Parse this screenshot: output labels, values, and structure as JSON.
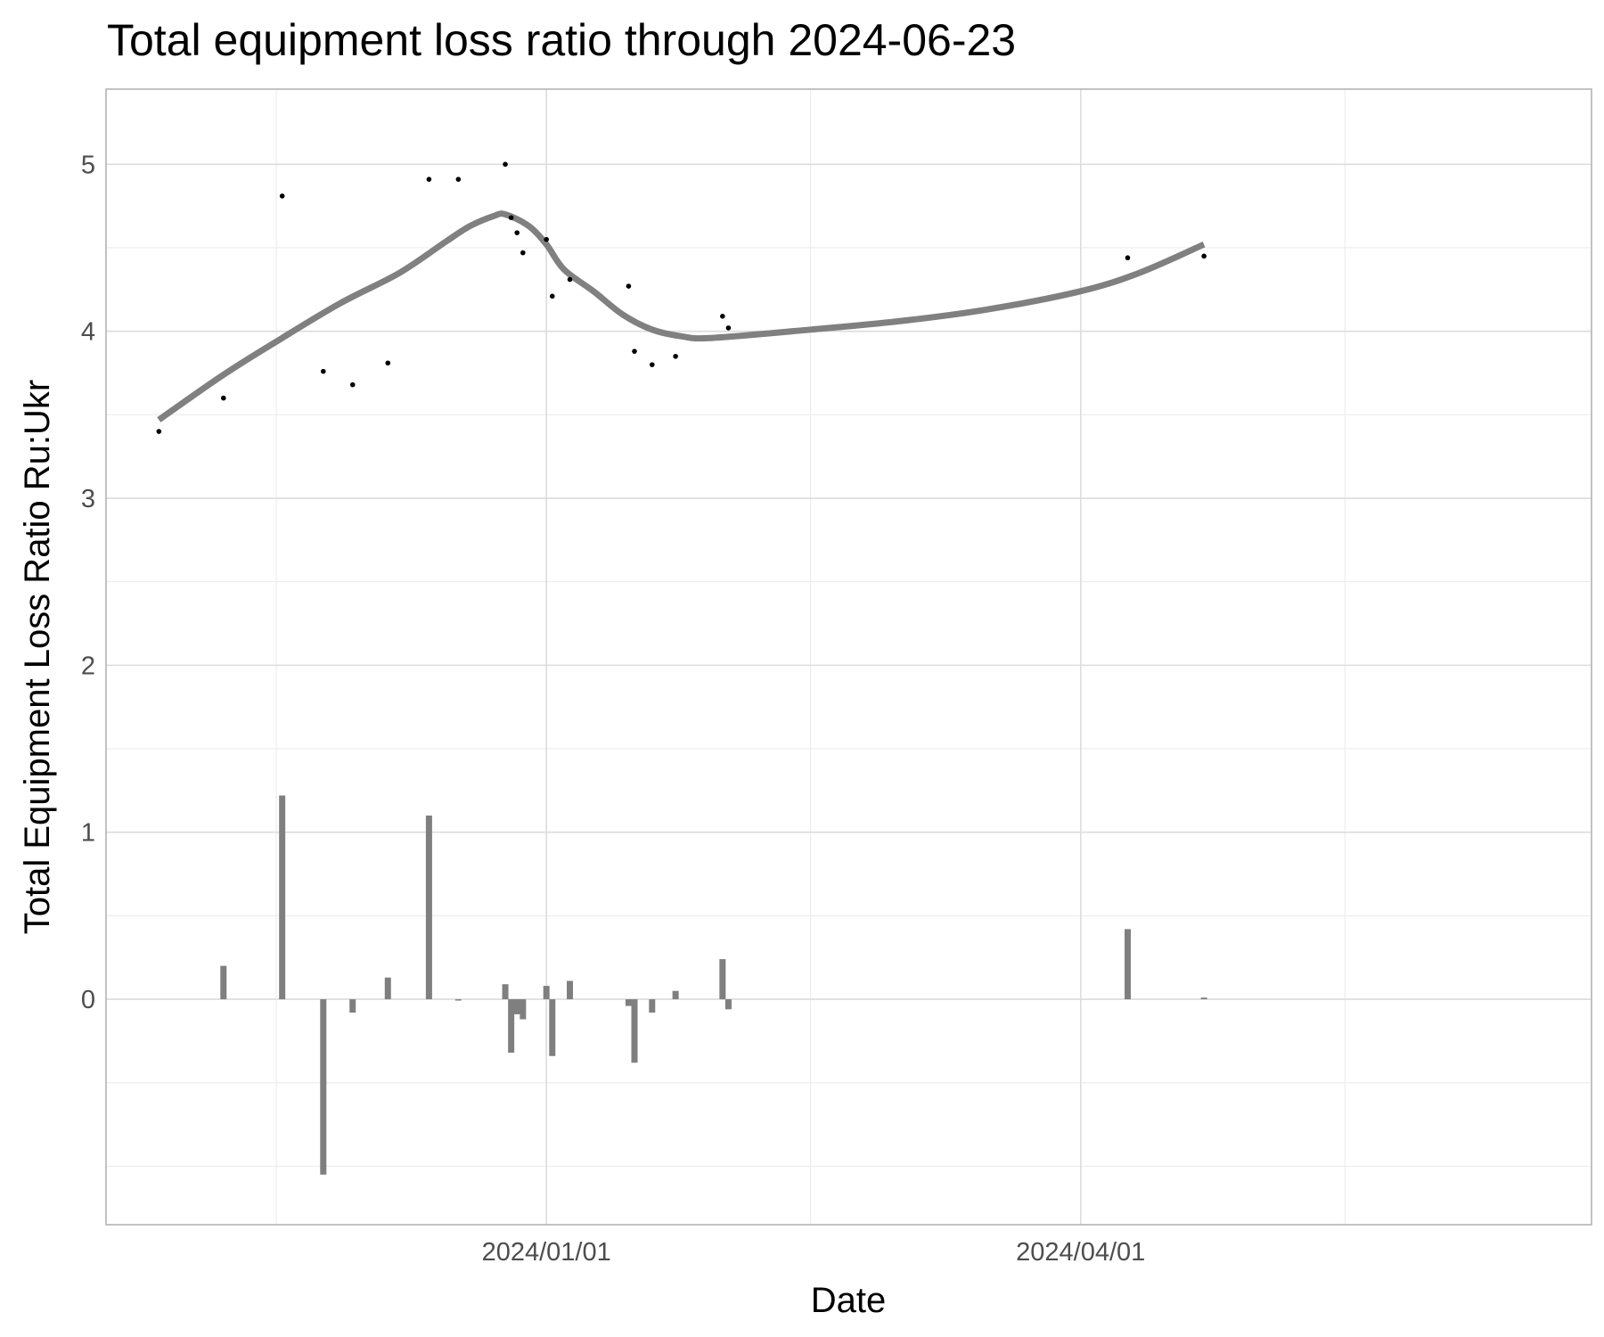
{
  "chart_data": {
    "type": "scatter",
    "title": "Total equipment loss ratio through 2024-06-23",
    "xlabel": "Date",
    "ylabel": "Total Equipment Loss Ratio Ru:Ukr",
    "xlim": [
      "2023-10-18",
      "2024-06-27"
    ],
    "ylim": [
      -1.35,
      5.45
    ],
    "x_ticks": [
      {
        "date": "2024-01-01",
        "label": "2024/01/01"
      },
      {
        "date": "2024-04-01",
        "label": "2024/04/01"
      }
    ],
    "x_minor_gridlines": [
      "2023-11-16",
      "2024-02-15",
      "2024-05-16"
    ],
    "y_ticks": [
      {
        "value": 0,
        "label": "0"
      },
      {
        "value": 1,
        "label": "1"
      },
      {
        "value": 2,
        "label": "2"
      },
      {
        "value": 3,
        "label": "3"
      },
      {
        "value": 4,
        "label": "4"
      },
      {
        "value": 5,
        "label": "5"
      }
    ],
    "y_minor_gridlines": [
      -1,
      -0.5,
      0.5,
      1.5,
      2.5,
      3.5,
      4.5
    ],
    "grid": true,
    "colors": {
      "points": "#000000",
      "trend": "#808080",
      "bars": "#7f7f7f"
    },
    "series": [
      {
        "kind": "points",
        "points": [
          {
            "x": "2023-10-27",
            "y": 3.4
          },
          {
            "x": "2023-11-07",
            "y": 3.6
          },
          {
            "x": "2023-11-17",
            "y": 4.81
          },
          {
            "x": "2023-11-24",
            "y": 3.76
          },
          {
            "x": "2023-11-29",
            "y": 3.68
          },
          {
            "x": "2023-12-05",
            "y": 3.81
          },
          {
            "x": "2023-12-12",
            "y": 4.91
          },
          {
            "x": "2023-12-17",
            "y": 4.91
          },
          {
            "x": "2023-12-25",
            "y": 5.0
          },
          {
            "x": "2023-12-26",
            "y": 4.68
          },
          {
            "x": "2023-12-27",
            "y": 4.59
          },
          {
            "x": "2023-12-28",
            "y": 4.47
          },
          {
            "x": "2024-01-01",
            "y": 4.55
          },
          {
            "x": "2024-01-02",
            "y": 4.21
          },
          {
            "x": "2024-01-05",
            "y": 4.31
          },
          {
            "x": "2024-01-15",
            "y": 4.27
          },
          {
            "x": "2024-01-16",
            "y": 3.88
          },
          {
            "x": "2024-01-19",
            "y": 3.8
          },
          {
            "x": "2024-01-23",
            "y": 3.85
          },
          {
            "x": "2024-01-31",
            "y": 4.09
          },
          {
            "x": "2024-02-01",
            "y": 4.02
          },
          {
            "x": "2024-04-09",
            "y": 4.44
          },
          {
            "x": "2024-04-22",
            "y": 4.45
          }
        ]
      },
      {
        "kind": "trend",
        "points": [
          {
            "x": "2023-10-27",
            "y": 3.47
          },
          {
            "x": "2023-11-07",
            "y": 3.74
          },
          {
            "x": "2023-11-17",
            "y": 3.96
          },
          {
            "x": "2023-11-27",
            "y": 4.17
          },
          {
            "x": "2023-12-07",
            "y": 4.35
          },
          {
            "x": "2023-12-15",
            "y": 4.54
          },
          {
            "x": "2023-12-19",
            "y": 4.63
          },
          {
            "x": "2023-12-23",
            "y": 4.69
          },
          {
            "x": "2023-12-25",
            "y": 4.7
          },
          {
            "x": "2023-12-29",
            "y": 4.63
          },
          {
            "x": "2024-01-01",
            "y": 4.52
          },
          {
            "x": "2024-01-04",
            "y": 4.37
          },
          {
            "x": "2024-01-09",
            "y": 4.24
          },
          {
            "x": "2024-01-14",
            "y": 4.1
          },
          {
            "x": "2024-01-19",
            "y": 4.01
          },
          {
            "x": "2024-01-24",
            "y": 3.97
          },
          {
            "x": "2024-01-29",
            "y": 3.96
          },
          {
            "x": "2024-02-15",
            "y": 4.01
          },
          {
            "x": "2024-03-01",
            "y": 4.06
          },
          {
            "x": "2024-03-16",
            "y": 4.13
          },
          {
            "x": "2024-04-01",
            "y": 4.24
          },
          {
            "x": "2024-04-11",
            "y": 4.35
          },
          {
            "x": "2024-04-22",
            "y": 4.52
          }
        ]
      },
      {
        "kind": "bars",
        "points": [
          {
            "x": "2023-11-07",
            "y": 0.2
          },
          {
            "x": "2023-11-17",
            "y": 1.22
          },
          {
            "x": "2023-11-24",
            "y": -1.05
          },
          {
            "x": "2023-11-29",
            "y": -0.08
          },
          {
            "x": "2023-12-05",
            "y": 0.13
          },
          {
            "x": "2023-12-12",
            "y": 1.1
          },
          {
            "x": "2023-12-17",
            "y": 0.0
          },
          {
            "x": "2023-12-25",
            "y": 0.09
          },
          {
            "x": "2023-12-26",
            "y": -0.32
          },
          {
            "x": "2023-12-27",
            "y": -0.09
          },
          {
            "x": "2023-12-28",
            "y": -0.12
          },
          {
            "x": "2024-01-01",
            "y": 0.08
          },
          {
            "x": "2024-01-02",
            "y": -0.34
          },
          {
            "x": "2024-01-05",
            "y": 0.11
          },
          {
            "x": "2024-01-15",
            "y": -0.04
          },
          {
            "x": "2024-01-16",
            "y": -0.38
          },
          {
            "x": "2024-01-19",
            "y": -0.08
          },
          {
            "x": "2024-01-23",
            "y": 0.05
          },
          {
            "x": "2024-01-31",
            "y": 0.24
          },
          {
            "x": "2024-02-01",
            "y": -0.06
          },
          {
            "x": "2024-04-09",
            "y": 0.42
          },
          {
            "x": "2024-04-22",
            "y": 0.01
          }
        ]
      }
    ]
  }
}
